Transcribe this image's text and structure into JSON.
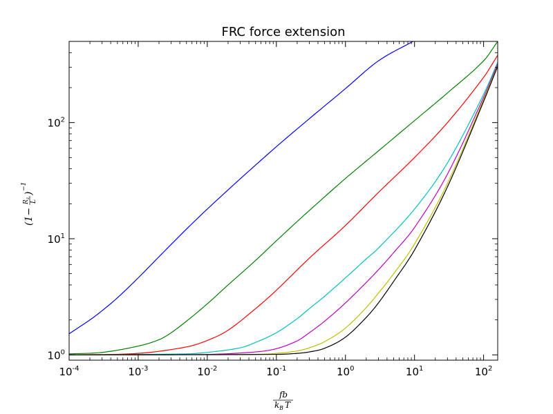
{
  "chart_data": {
    "type": "line",
    "title": "FRC force extension",
    "xlabel": {
      "numerator": "fb",
      "denominator_k": "k",
      "denominator_sub": "B",
      "denominator_T": "T"
    },
    "ylabel": {
      "open": "(1−",
      "frac_num": "R",
      "frac_num_sub": "z",
      "frac_den": "L",
      "close": ")",
      "exponent": "−1"
    },
    "x_scale": "log",
    "y_scale": "log",
    "xlim": [
      0.0001,
      160
    ],
    "ylim": [
      0.9,
      500
    ],
    "grid": false,
    "legend": "none",
    "x_ticks": [
      {
        "value": 0.0001,
        "base": "10",
        "exp": "-4"
      },
      {
        "value": 0.001,
        "base": "10",
        "exp": "-3"
      },
      {
        "value": 0.01,
        "base": "10",
        "exp": "-2"
      },
      {
        "value": 0.1,
        "base": "10",
        "exp": "-1"
      },
      {
        "value": 1,
        "base": "10",
        "exp": "0"
      },
      {
        "value": 10,
        "base": "10",
        "exp": "1"
      },
      {
        "value": 100,
        "base": "10",
        "exp": "2"
      }
    ],
    "y_ticks": [
      {
        "value": 1,
        "base": "10",
        "exp": "0"
      },
      {
        "value": 10,
        "base": "10",
        "exp": "1"
      },
      {
        "value": 100,
        "base": "10",
        "exp": "2"
      }
    ],
    "series": [
      {
        "color": "#0000ff",
        "x": [
          0.0001,
          0.0002,
          0.0003,
          0.0005,
          0.001,
          0.002,
          0.005,
          0.01,
          0.03,
          0.1,
          0.3,
          1,
          3,
          9.5
        ],
        "y": [
          1.52,
          2.0,
          2.4,
          3.1,
          4.6,
          7.0,
          12.1,
          18.0,
          32.8,
          62,
          108,
          196,
          340,
          500
        ]
      },
      {
        "color": "#008000",
        "x": [
          0.0001,
          0.0003,
          0.001,
          0.002,
          0.003,
          0.005,
          0.01,
          0.02,
          0.05,
          0.1,
          0.3,
          1,
          3,
          10,
          30,
          100,
          160
        ],
        "y": [
          1.02,
          1.05,
          1.19,
          1.35,
          1.55,
          1.95,
          2.75,
          4.0,
          6.5,
          9.6,
          17.5,
          33,
          57,
          104,
          180,
          340,
          500
        ]
      },
      {
        "color": "#ff0000",
        "x": [
          0.0001,
          0.001,
          0.005,
          0.01,
          0.02,
          0.05,
          0.1,
          0.3,
          1,
          3,
          10,
          30,
          100,
          160
        ],
        "y": [
          1.0,
          1.03,
          1.17,
          1.33,
          1.63,
          2.5,
          3.6,
          6.8,
          13,
          25,
          50,
          100,
          245,
          380
        ]
      },
      {
        "color": "#00bfbf",
        "x": [
          0.0001,
          0.005,
          0.01,
          0.03,
          0.05,
          0.1,
          0.2,
          0.3,
          0.5,
          1,
          2,
          3,
          10,
          30,
          100,
          160
        ],
        "y": [
          1.0,
          1.02,
          1.05,
          1.15,
          1.28,
          1.55,
          2.05,
          2.5,
          3.2,
          4.6,
          6.7,
          8.3,
          18,
          45,
          175,
          330
        ]
      },
      {
        "color": "#bf00bf",
        "x": [
          0.0001,
          0.01,
          0.05,
          0.1,
          0.2,
          0.3,
          0.5,
          1,
          2,
          3,
          5,
          10,
          30,
          100,
          160
        ],
        "y": [
          1.0,
          1.01,
          1.06,
          1.13,
          1.32,
          1.55,
          1.95,
          2.8,
          4.2,
          5.4,
          7.6,
          12.5,
          36,
          165,
          320
        ]
      },
      {
        "color": "#bfbf00",
        "x": [
          0.0001,
          0.05,
          0.1,
          0.2,
          0.3,
          0.5,
          1,
          2,
          3,
          5,
          10,
          30,
          100,
          160
        ],
        "y": [
          1.0,
          1.01,
          1.03,
          1.08,
          1.15,
          1.3,
          1.7,
          2.55,
          3.4,
          5.0,
          9.0,
          30,
          158,
          310
        ]
      },
      {
        "color": "#000000",
        "x": [
          0.0001,
          0.1,
          0.2,
          0.3,
          0.5,
          1,
          2,
          3,
          5,
          10,
          30,
          100,
          160
        ],
        "y": [
          1.0,
          1.01,
          1.03,
          1.06,
          1.14,
          1.42,
          2.1,
          2.8,
          4.3,
          8.0,
          28,
          152,
          305
        ]
      }
    ]
  }
}
